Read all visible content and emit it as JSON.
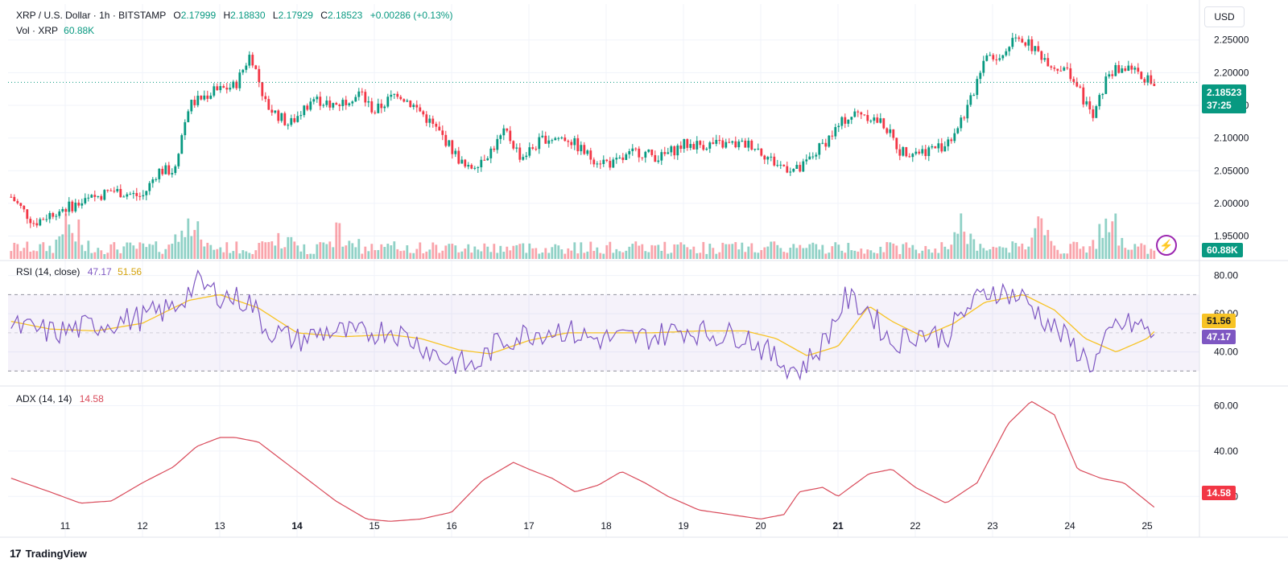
{
  "header": {
    "symbol": "XRP / U.S. Dollar · 1h · BITSTAMP",
    "open_label": "O",
    "open": "2.17999",
    "high_label": "H",
    "high": "2.18830",
    "low_label": "L",
    "low": "2.17929",
    "close_label": "C",
    "close": "2.18523",
    "change": "+0.00286 (+0.13%)",
    "volume_label": "Vol · XRP",
    "volume": "60.88K"
  },
  "currency_button": "USD",
  "price_tag": {
    "price": "2.18523",
    "countdown": "37:25"
  },
  "volume_tag": "60.88K",
  "rsi": {
    "label": "RSI (14, close)",
    "value": "47.17",
    "ma_value": "51.56"
  },
  "adx": {
    "label": "ADX (14, 14)",
    "value": "14.58"
  },
  "branding": {
    "logo_mark": "17",
    "name": "TradingView"
  },
  "colors": {
    "up": "#089981",
    "down": "#f23645",
    "rsi_line": "#7e57c2",
    "rsi_ma": "#f7c325",
    "adx_line": "#d94a5a",
    "band": "#7e57c2"
  },
  "icons": {
    "bolt": "lightning-bolt-icon"
  },
  "chart_data": [
    {
      "type": "candlestick",
      "title": "XRP / U.S. Dollar · 1h · BITSTAMP",
      "x_ticks": [
        "11",
        "12",
        "13",
        "14",
        "15",
        "16",
        "17",
        "18",
        "19",
        "20",
        "21",
        "22",
        "23",
        "24",
        "25"
      ],
      "y_ticks": [
        "1.95000",
        "2.00000",
        "2.05000",
        "2.10000",
        "2.15000",
        "2.20000",
        "2.25000"
      ],
      "ylim": [
        1.915,
        2.305
      ],
      "current_price": 2.18523,
      "close_path": [
        [
          10.3,
          2.01
        ],
        [
          10.6,
          1.97
        ],
        [
          10.9,
          1.99
        ],
        [
          11.2,
          2.0
        ],
        [
          11.6,
          2.02
        ],
        [
          12.0,
          2.01
        ],
        [
          12.2,
          2.05
        ],
        [
          12.4,
          2.05
        ],
        [
          12.6,
          2.15
        ],
        [
          12.9,
          2.17
        ],
        [
          13.2,
          2.18
        ],
        [
          13.4,
          2.23
        ],
        [
          13.6,
          2.15
        ],
        [
          13.9,
          2.12
        ],
        [
          14.2,
          2.16
        ],
        [
          14.5,
          2.15
        ],
        [
          14.8,
          2.17
        ],
        [
          15.0,
          2.14
        ],
        [
          15.3,
          2.17
        ],
        [
          15.6,
          2.14
        ],
        [
          15.9,
          2.1
        ],
        [
          16.2,
          2.05
        ],
        [
          16.5,
          2.08
        ],
        [
          16.7,
          2.11
        ],
        [
          16.9,
          2.07
        ],
        [
          17.2,
          2.1
        ],
        [
          17.5,
          2.1
        ],
        [
          17.8,
          2.07
        ],
        [
          18.1,
          2.06
        ],
        [
          18.4,
          2.08
        ],
        [
          18.7,
          2.07
        ],
        [
          19.0,
          2.09
        ],
        [
          19.4,
          2.09
        ],
        [
          19.7,
          2.09
        ],
        [
          19.9,
          2.09
        ],
        [
          20.2,
          2.06
        ],
        [
          20.5,
          2.05
        ],
        [
          20.8,
          2.09
        ],
        [
          21.1,
          2.13
        ],
        [
          21.3,
          2.14
        ],
        [
          21.6,
          2.12
        ],
        [
          21.8,
          2.08
        ],
        [
          22.1,
          2.08
        ],
        [
          22.4,
          2.09
        ],
        [
          22.7,
          2.15
        ],
        [
          22.9,
          2.23
        ],
        [
          23.1,
          2.22
        ],
        [
          23.3,
          2.26
        ],
        [
          23.5,
          2.24
        ],
        [
          23.8,
          2.21
        ],
        [
          24.0,
          2.2
        ],
        [
          24.3,
          2.13
        ],
        [
          24.5,
          2.2
        ],
        [
          24.8,
          2.21
        ],
        [
          25.1,
          2.18
        ]
      ],
      "volume_peaks": [
        [
          11.1,
          "high"
        ],
        [
          12.6,
          "high"
        ],
        [
          13.8,
          "medium"
        ],
        [
          14.6,
          "high"
        ],
        [
          22.6,
          "high"
        ],
        [
          23.6,
          "high"
        ],
        [
          24.5,
          "high"
        ]
      ]
    },
    {
      "type": "line",
      "name": "RSI (14, close)",
      "y_ticks": [
        "40.00",
        "60.00",
        "80.00"
      ],
      "ylim": [
        23,
        87
      ],
      "band": [
        30,
        70
      ],
      "series": [
        {
          "name": "RSI",
          "values": [
            [
              10.3,
              53
            ],
            [
              10.9,
              50
            ],
            [
              11.5,
              55
            ],
            [
              12.0,
              58
            ],
            [
              12.4,
              63
            ],
            [
              12.7,
              76
            ],
            [
              13.0,
              70
            ],
            [
              13.4,
              66
            ],
            [
              13.6,
              52
            ],
            [
              14.0,
              46
            ],
            [
              14.4,
              51
            ],
            [
              14.8,
              49
            ],
            [
              15.2,
              52
            ],
            [
              15.6,
              44
            ],
            [
              15.9,
              36
            ],
            [
              16.3,
              32
            ],
            [
              16.6,
              45
            ],
            [
              17.0,
              50
            ],
            [
              17.4,
              52
            ],
            [
              17.8,
              47
            ],
            [
              18.2,
              47
            ],
            [
              18.6,
              48
            ],
            [
              19.0,
              52
            ],
            [
              19.4,
              49
            ],
            [
              19.8,
              49
            ],
            [
              20.2,
              36
            ],
            [
              20.5,
              30
            ],
            [
              20.8,
              44
            ],
            [
              21.1,
              68
            ],
            [
              21.4,
              62
            ],
            [
              21.7,
              44
            ],
            [
              22.0,
              50
            ],
            [
              22.4,
              48
            ],
            [
              22.7,
              64
            ],
            [
              23.0,
              73
            ],
            [
              23.4,
              68
            ],
            [
              23.7,
              56
            ],
            [
              24.0,
              45
            ],
            [
              24.3,
              33
            ],
            [
              24.6,
              54
            ],
            [
              24.9,
              54
            ],
            [
              25.1,
              48
            ]
          ]
        },
        {
          "name": "RSI-based MA",
          "values": [
            [
              10.3,
              56
            ],
            [
              10.8,
              52
            ],
            [
              11.4,
              51
            ],
            [
              12.0,
              55
            ],
            [
              12.6,
              67
            ],
            [
              13.0,
              70
            ],
            [
              13.5,
              63
            ],
            [
              14.0,
              50
            ],
            [
              14.6,
              48
            ],
            [
              15.2,
              49
            ],
            [
              15.6,
              47
            ],
            [
              16.1,
              41
            ],
            [
              16.5,
              39
            ],
            [
              17.0,
              46
            ],
            [
              17.5,
              50
            ],
            [
              18.0,
              50
            ],
            [
              18.6,
              50
            ],
            [
              19.2,
              51
            ],
            [
              19.8,
              51
            ],
            [
              20.2,
              47
            ],
            [
              20.6,
              38
            ],
            [
              21.0,
              43
            ],
            [
              21.4,
              64
            ],
            [
              21.7,
              56
            ],
            [
              22.1,
              48
            ],
            [
              22.5,
              55
            ],
            [
              22.9,
              66
            ],
            [
              23.4,
              70
            ],
            [
              23.8,
              62
            ],
            [
              24.2,
              47
            ],
            [
              24.6,
              40
            ],
            [
              25.0,
              47
            ],
            [
              25.1,
              51
            ]
          ]
        }
      ]
    },
    {
      "type": "line",
      "name": "ADX (14, 14)",
      "y_ticks": [
        "20.00",
        "40.00",
        "60.00"
      ],
      "ylim": [
        2,
        68
      ],
      "series": [
        {
          "name": "ADX",
          "values": [
            [
              10.3,
              28
            ],
            [
              10.8,
              22
            ],
            [
              11.2,
              17
            ],
            [
              11.6,
              18
            ],
            [
              12.0,
              26
            ],
            [
              12.4,
              33
            ],
            [
              12.7,
              42
            ],
            [
              13.0,
              46
            ],
            [
              13.2,
              46
            ],
            [
              13.5,
              44
            ],
            [
              14.0,
              31
            ],
            [
              14.5,
              18
            ],
            [
              14.9,
              10
            ],
            [
              15.2,
              9
            ],
            [
              15.6,
              10
            ],
            [
              16.0,
              13
            ],
            [
              16.4,
              27
            ],
            [
              16.8,
              35
            ],
            [
              17.0,
              32
            ],
            [
              17.3,
              28
            ],
            [
              17.6,
              22
            ],
            [
              17.9,
              25
            ],
            [
              18.2,
              31
            ],
            [
              18.5,
              26
            ],
            [
              18.8,
              20
            ],
            [
              19.2,
              14
            ],
            [
              19.6,
              12
            ],
            [
              20.0,
              10
            ],
            [
              20.3,
              12
            ],
            [
              20.5,
              22
            ],
            [
              20.8,
              24
            ],
            [
              21.0,
              20
            ],
            [
              21.4,
              30
            ],
            [
              21.7,
              32
            ],
            [
              22.0,
              24
            ],
            [
              22.4,
              17
            ],
            [
              22.8,
              26
            ],
            [
              23.2,
              52
            ],
            [
              23.5,
              62
            ],
            [
              23.8,
              56
            ],
            [
              24.1,
              32
            ],
            [
              24.4,
              28
            ],
            [
              24.7,
              26
            ],
            [
              25.1,
              15
            ]
          ]
        }
      ]
    }
  ]
}
